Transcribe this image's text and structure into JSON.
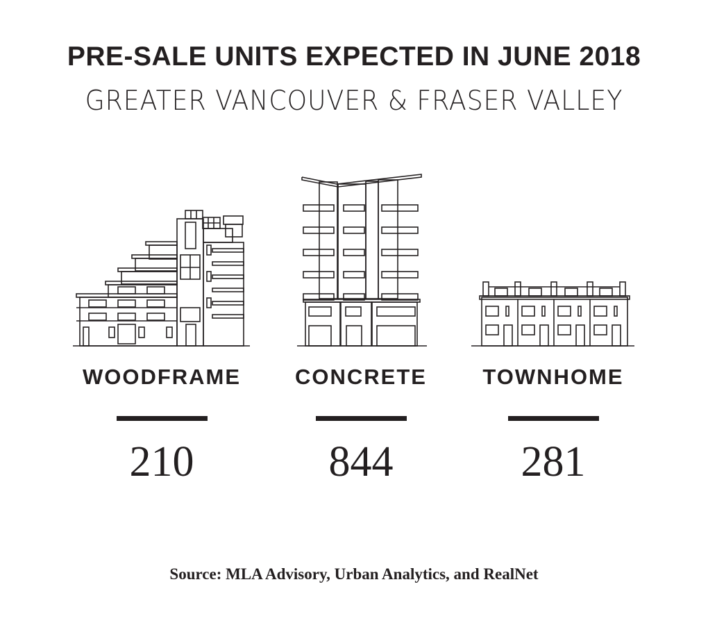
{
  "title": "PRE-SALE UNITS EXPECTED IN JUNE 2018",
  "subtitle": "GREATER VANCOUVER & FRASER VALLEY",
  "categories": [
    {
      "label": "WOODFRAME",
      "value": "210",
      "icon": "woodframe-building-icon"
    },
    {
      "label": "CONCRETE",
      "value": "844",
      "icon": "concrete-tower-icon"
    },
    {
      "label": "TOWNHOME",
      "value": "281",
      "icon": "townhome-row-icon"
    }
  ],
  "source": "Source: MLA Advisory, Urban Analytics, and RealNet",
  "colors": {
    "ink": "#231f20",
    "background": "#ffffff"
  }
}
